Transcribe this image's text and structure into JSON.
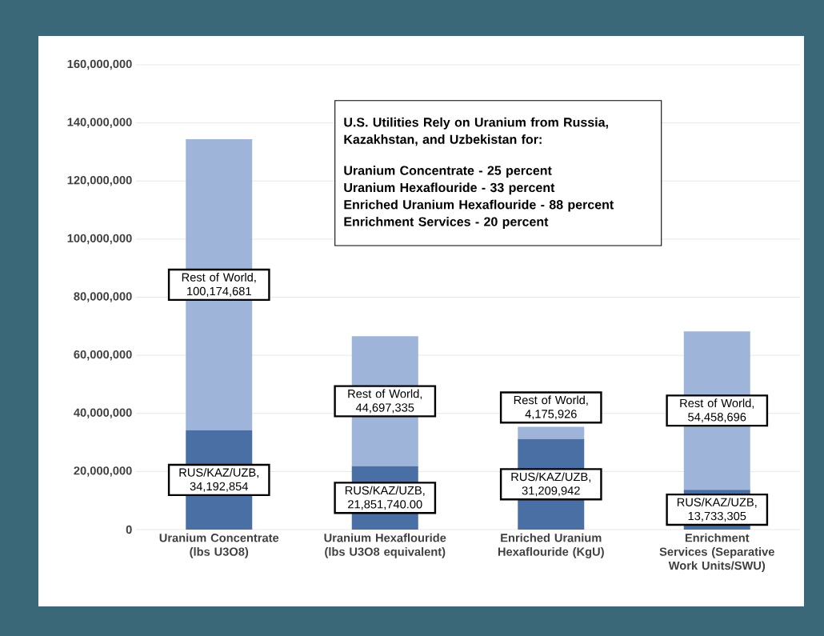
{
  "chart_data": {
    "type": "bar",
    "stacked": true,
    "categories": [
      "Uranium Concentrate (lbs U3O8)",
      "Uranium Hexaflouride  (lbs U3O8 equivalent)",
      "Enriched Uranium Hexaflouride (KgU)",
      "Enrichment Services (Separative Work Units/SWU)"
    ],
    "series": [
      {
        "color": "#4a6fa5",
        "values": [
          34192854,
          21851740,
          31209942,
          13733305
        ],
        "value_labels": [
          "RUS/KAZ/UZB, 34,192,854",
          "RUS/KAZ/UZB, 21,851,740.00",
          "RUS/KAZ/UZB, 31,209,942",
          "RUS/KAZ/UZB, 13,733,305"
        ]
      },
      {
        "color": "#9fb4d9",
        "values": [
          100174681,
          44697335,
          4175926,
          54458696
        ],
        "value_labels": [
          "Rest of World, 100,174,681",
          "Rest of World, 44,697,335",
          "Rest of World, 4,175,926",
          "Rest of World, 54,458,696"
        ]
      }
    ],
    "ylim": [
      0,
      160000000
    ],
    "yticks": [
      0,
      {
        "value": 20000000,
        "label": "20,000,000"
      },
      {
        "value": 40000000,
        "label": "40,000,000"
      },
      {
        "value": 60000000,
        "label": "60,000,000"
      },
      {
        "value": 80000000,
        "label": "80,000,000"
      },
      {
        "value": 100000000,
        "label": "100,000,000"
      },
      {
        "value": 120000000,
        "label": "120,000,000"
      },
      {
        "value": 140000000,
        "label": "140,000,000"
      },
      {
        "value": 160000000,
        "label": "160,000,000"
      }
    ],
    "grid": "y",
    "annotations": [
      "U.S. Utilities Rely on Uranium from Russia, Kazakhstan, and Uzbekistan for:",
      "Uranium Concentrate - 25 percent",
      "Uranium Hexaflouride - 33 percent",
      "Enriched Uranium Hexaflouride - 88 percent",
      "Enrichment Services - 20 percent"
    ]
  }
}
